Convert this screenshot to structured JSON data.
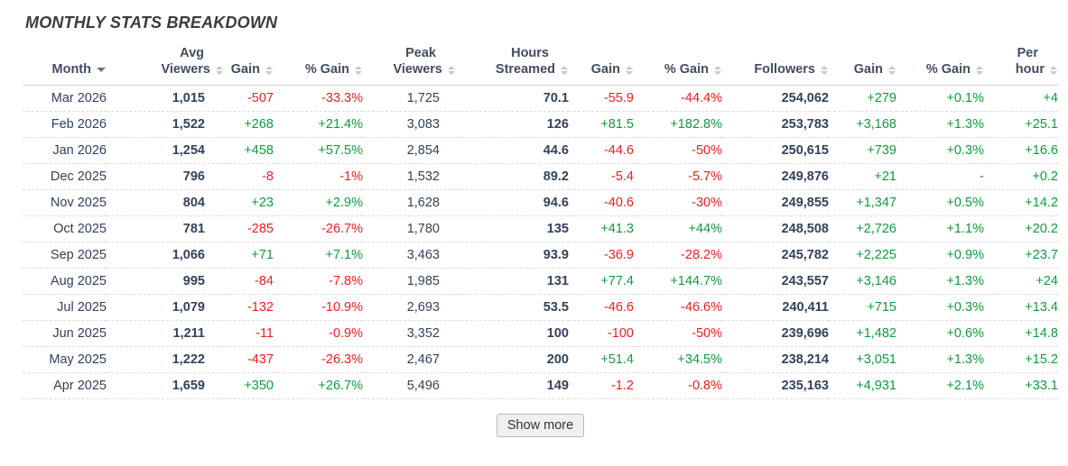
{
  "title": "MONTHLY STATS BREAKDOWN",
  "show_more_label": "Show more",
  "colors": {
    "positive": "#0f9b3e",
    "negative": "#f21c1c",
    "dark_text": "#344259",
    "header_text": "#414d60"
  },
  "table": {
    "columns": [
      {
        "key": "month",
        "top": "",
        "label": "Month",
        "sort": "desc"
      },
      {
        "key": "avg_viewers",
        "top": "Avg",
        "label": "Viewers",
        "sort": "both"
      },
      {
        "key": "avg_gain",
        "top": "",
        "label": "Gain",
        "sort": "both"
      },
      {
        "key": "avg_gain_pct",
        "top": "",
        "label": "% Gain",
        "sort": "both"
      },
      {
        "key": "peak_viewers",
        "top": "Peak",
        "label": "Viewers",
        "sort": "both"
      },
      {
        "key": "hours_streamed",
        "top": "Hours",
        "label": "Streamed",
        "sort": "both"
      },
      {
        "key": "hours_gain",
        "top": "",
        "label": "Gain",
        "sort": "both"
      },
      {
        "key": "hours_gain_pct",
        "top": "",
        "label": "% Gain",
        "sort": "both"
      },
      {
        "key": "followers",
        "top": "",
        "label": "Followers",
        "sort": "both"
      },
      {
        "key": "followers_gain",
        "top": "",
        "label": "Gain",
        "sort": "both"
      },
      {
        "key": "followers_gain_pct",
        "top": "",
        "label": "% Gain",
        "sort": "both"
      },
      {
        "key": "followers_per_hour",
        "top": "Per",
        "label": "hour",
        "sort": "both"
      }
    ],
    "rows": [
      {
        "month": "Mar 2026",
        "avg_viewers": "1,015",
        "avg_gain": "-507",
        "avg_gain_pct": "-33.3%",
        "peak_viewers": "1,725",
        "hours_streamed": "70.1",
        "hours_gain": "-55.9",
        "hours_gain_pct": "-44.4%",
        "followers": "254,062",
        "followers_gain": "+279",
        "followers_gain_pct": "+0.1%",
        "followers_per_hour": "+4"
      },
      {
        "month": "Feb 2026",
        "avg_viewers": "1,522",
        "avg_gain": "+268",
        "avg_gain_pct": "+21.4%",
        "peak_viewers": "3,083",
        "hours_streamed": "126",
        "hours_gain": "+81.5",
        "hours_gain_pct": "+182.8%",
        "followers": "253,783",
        "followers_gain": "+3,168",
        "followers_gain_pct": "+1.3%",
        "followers_per_hour": "+25.1"
      },
      {
        "month": "Jan 2026",
        "avg_viewers": "1,254",
        "avg_gain": "+458",
        "avg_gain_pct": "+57.5%",
        "peak_viewers": "2,854",
        "hours_streamed": "44.6",
        "hours_gain": "-44.6",
        "hours_gain_pct": "-50%",
        "followers": "250,615",
        "followers_gain": "+739",
        "followers_gain_pct": "+0.3%",
        "followers_per_hour": "+16.6"
      },
      {
        "month": "Dec 2025",
        "avg_viewers": "796",
        "avg_gain": "-8",
        "avg_gain_pct": "-1%",
        "peak_viewers": "1,532",
        "hours_streamed": "89.2",
        "hours_gain": "-5.4",
        "hours_gain_pct": "-5.7%",
        "followers": "249,876",
        "followers_gain": "+21",
        "followers_gain_pct": "-",
        "followers_per_hour": "+0.2"
      },
      {
        "month": "Nov 2025",
        "avg_viewers": "804",
        "avg_gain": "+23",
        "avg_gain_pct": "+2.9%",
        "peak_viewers": "1,628",
        "hours_streamed": "94.6",
        "hours_gain": "-40.6",
        "hours_gain_pct": "-30%",
        "followers": "249,855",
        "followers_gain": "+1,347",
        "followers_gain_pct": "+0.5%",
        "followers_per_hour": "+14.2"
      },
      {
        "month": "Oct 2025",
        "avg_viewers": "781",
        "avg_gain": "-285",
        "avg_gain_pct": "-26.7%",
        "peak_viewers": "1,780",
        "hours_streamed": "135",
        "hours_gain": "+41.3",
        "hours_gain_pct": "+44%",
        "followers": "248,508",
        "followers_gain": "+2,726",
        "followers_gain_pct": "+1.1%",
        "followers_per_hour": "+20.2"
      },
      {
        "month": "Sep 2025",
        "avg_viewers": "1,066",
        "avg_gain": "+71",
        "avg_gain_pct": "+7.1%",
        "peak_viewers": "3,463",
        "hours_streamed": "93.9",
        "hours_gain": "-36.9",
        "hours_gain_pct": "-28.2%",
        "followers": "245,782",
        "followers_gain": "+2,225",
        "followers_gain_pct": "+0.9%",
        "followers_per_hour": "+23.7"
      },
      {
        "month": "Aug 2025",
        "avg_viewers": "995",
        "avg_gain": "-84",
        "avg_gain_pct": "-7.8%",
        "peak_viewers": "1,985",
        "hours_streamed": "131",
        "hours_gain": "+77.4",
        "hours_gain_pct": "+144.7%",
        "followers": "243,557",
        "followers_gain": "+3,146",
        "followers_gain_pct": "+1.3%",
        "followers_per_hour": "+24"
      },
      {
        "month": "Jul 2025",
        "avg_viewers": "1,079",
        "avg_gain": "-132",
        "avg_gain_pct": "-10.9%",
        "peak_viewers": "2,693",
        "hours_streamed": "53.5",
        "hours_gain": "-46.6",
        "hours_gain_pct": "-46.6%",
        "followers": "240,411",
        "followers_gain": "+715",
        "followers_gain_pct": "+0.3%",
        "followers_per_hour": "+13.4"
      },
      {
        "month": "Jun 2025",
        "avg_viewers": "1,211",
        "avg_gain": "-11",
        "avg_gain_pct": "-0.9%",
        "peak_viewers": "3,352",
        "hours_streamed": "100",
        "hours_gain": "-100",
        "hours_gain_pct": "-50%",
        "followers": "239,696",
        "followers_gain": "+1,482",
        "followers_gain_pct": "+0.6%",
        "followers_per_hour": "+14.8"
      },
      {
        "month": "May 2025",
        "avg_viewers": "1,222",
        "avg_gain": "-437",
        "avg_gain_pct": "-26.3%",
        "peak_viewers": "2,467",
        "hours_streamed": "200",
        "hours_gain": "+51.4",
        "hours_gain_pct": "+34.5%",
        "followers": "238,214",
        "followers_gain": "+3,051",
        "followers_gain_pct": "+1.3%",
        "followers_per_hour": "+15.2"
      },
      {
        "month": "Apr 2025",
        "avg_viewers": "1,659",
        "avg_gain": "+350",
        "avg_gain_pct": "+26.7%",
        "peak_viewers": "5,496",
        "hours_streamed": "149",
        "hours_gain": "-1.2",
        "hours_gain_pct": "-0.8%",
        "followers": "235,163",
        "followers_gain": "+4,931",
        "followers_gain_pct": "+2.1%",
        "followers_per_hour": "+33.1"
      }
    ]
  }
}
